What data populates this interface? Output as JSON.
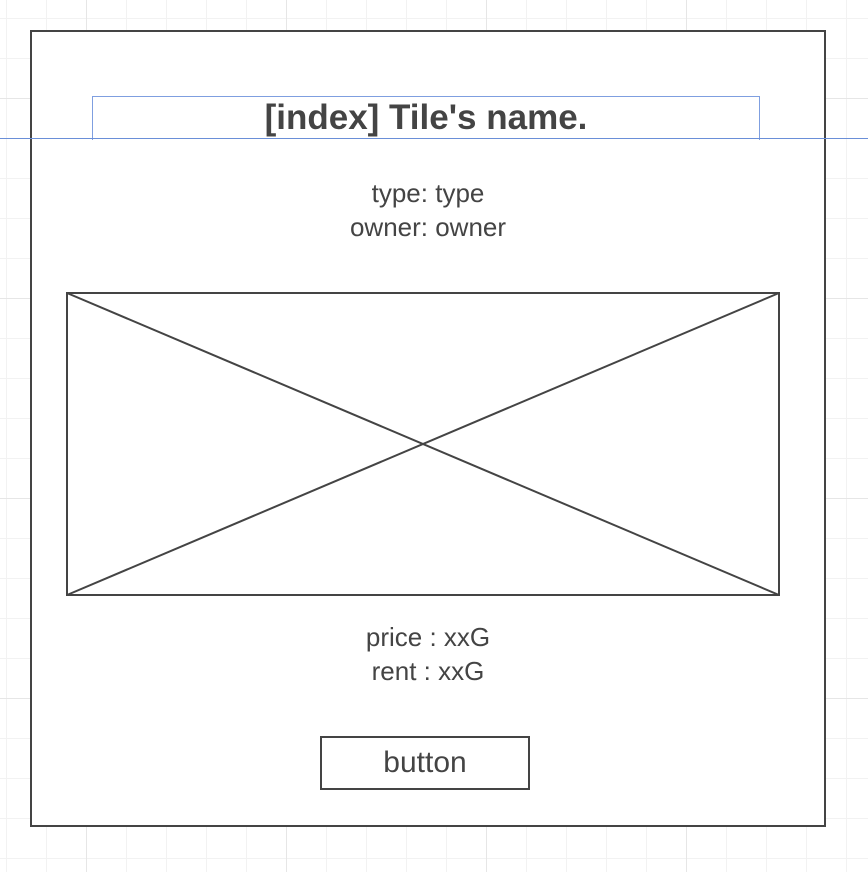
{
  "tile": {
    "title": "[index] Tile's name.",
    "type_line": "type: type",
    "owner_line": "owner: owner",
    "price_line": "price : xxG",
    "rent_line": "rent : xxG",
    "button_label": "button"
  },
  "colors": {
    "stroke": "#444444",
    "selection_blue": "#7f9fe0",
    "grid": "#e6e6e6"
  }
}
